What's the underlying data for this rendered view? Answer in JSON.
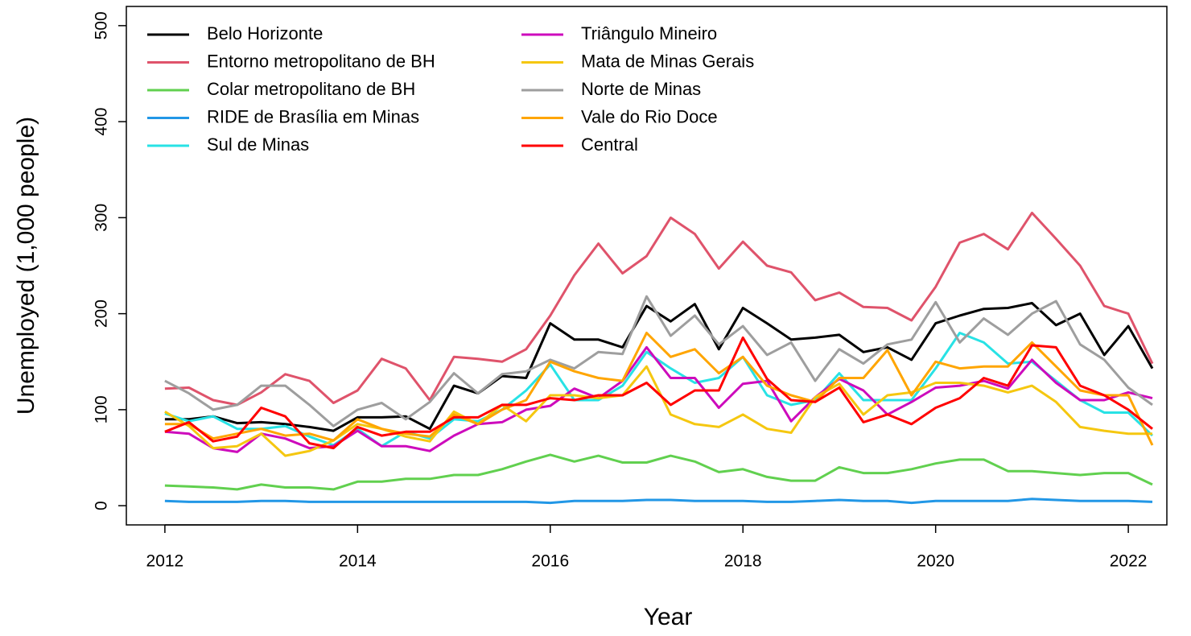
{
  "chart_data": {
    "type": "line",
    "x_label": "Year",
    "y_label": "Unemployed (1,000 people)",
    "x": [
      2012,
      2012.25,
      2012.5,
      2012.75,
      2013,
      2013.25,
      2013.5,
      2013.75,
      2014,
      2014.25,
      2014.5,
      2014.75,
      2015,
      2015.25,
      2015.5,
      2015.75,
      2016,
      2016.25,
      2016.5,
      2016.75,
      2017,
      2017.25,
      2017.5,
      2017.75,
      2018,
      2018.25,
      2018.5,
      2018.75,
      2019,
      2019.25,
      2019.5,
      2019.75,
      2020,
      2020.25,
      2020.5,
      2020.75,
      2021,
      2021.25,
      2021.5,
      2021.75,
      2022,
      2022.25
    ],
    "xlim": [
      2011.6,
      2022.4
    ],
    "xticks": [
      2012,
      2014,
      2016,
      2018,
      2020,
      2022
    ],
    "ylim": [
      -20,
      520
    ],
    "yticks": [
      0,
      100,
      200,
      300,
      400,
      500
    ],
    "legend": "top-left",
    "series": [
      {
        "name": "Belo Horizonte",
        "color": "#000000",
        "values": [
          90,
          90,
          93,
          86,
          87,
          85,
          82,
          78,
          92,
          92,
          93,
          80,
          125,
          117,
          135,
          133,
          190,
          173,
          173,
          165,
          208,
          192,
          210,
          163,
          206,
          190,
          173,
          175,
          178,
          160,
          165,
          152,
          190,
          198,
          205,
          206,
          211,
          188,
          200,
          157,
          187,
          143
        ]
      },
      {
        "name": "Entorno metropolitano de BH",
        "color": "#DF536B",
        "values": [
          122,
          123,
          110,
          105,
          118,
          137,
          130,
          107,
          120,
          153,
          143,
          110,
          155,
          153,
          150,
          163,
          198,
          240,
          273,
          242,
          260,
          300,
          283,
          247,
          275,
          250,
          243,
          214,
          222,
          207,
          206,
          193,
          228,
          274,
          283,
          267,
          305,
          278,
          250,
          208,
          200,
          148
        ]
      },
      {
        "name": "Colar metropolitano de BH",
        "color": "#61D04F",
        "values": [
          21,
          20,
          19,
          17,
          22,
          19,
          19,
          17,
          25,
          25,
          28,
          28,
          32,
          32,
          38,
          46,
          53,
          46,
          52,
          45,
          45,
          52,
          46,
          35,
          38,
          30,
          26,
          26,
          40,
          34,
          34,
          38,
          44,
          48,
          48,
          36,
          36,
          34,
          32,
          34,
          34,
          22
        ]
      },
      {
        "name": "RIDE de Brasília em Minas",
        "color": "#2297E6",
        "values": [
          5,
          4,
          4,
          4,
          5,
          5,
          4,
          4,
          4,
          4,
          4,
          4,
          4,
          4,
          4,
          4,
          3,
          5,
          5,
          5,
          6,
          6,
          5,
          5,
          5,
          4,
          4,
          5,
          6,
          5,
          5,
          3,
          5,
          5,
          5,
          5,
          7,
          6,
          5,
          5,
          5,
          4
        ]
      },
      {
        "name": "Sul de Minas",
        "color": "#28E2E5",
        "values": [
          96,
          88,
          93,
          80,
          80,
          83,
          72,
          63,
          80,
          62,
          77,
          70,
          90,
          88,
          100,
          120,
          147,
          110,
          110,
          125,
          160,
          143,
          128,
          133,
          155,
          115,
          105,
          110,
          138,
          110,
          110,
          110,
          143,
          180,
          170,
          148,
          150,
          130,
          110,
          97,
          97,
          73
        ]
      },
      {
        "name": "Triângulo Mineiro",
        "color": "#CD0BBC",
        "values": [
          77,
          75,
          60,
          56,
          75,
          70,
          60,
          62,
          78,
          62,
          62,
          57,
          73,
          85,
          87,
          100,
          104,
          122,
          112,
          130,
          165,
          133,
          133,
          102,
          127,
          130,
          88,
          113,
          132,
          120,
          95,
          108,
          123,
          125,
          130,
          122,
          152,
          128,
          110,
          110,
          118,
          112
        ]
      },
      {
        "name": "Mata de Minas Gerais",
        "color": "#F5C710",
        "values": [
          98,
          83,
          60,
          62,
          75,
          52,
          57,
          68,
          85,
          80,
          72,
          67,
          98,
          85,
          105,
          88,
          115,
          115,
          112,
          115,
          145,
          95,
          85,
          82,
          95,
          80,
          76,
          113,
          127,
          95,
          115,
          118,
          128,
          128,
          125,
          118,
          125,
          108,
          82,
          78,
          75,
          75
        ]
      },
      {
        "name": "Norte de Minas",
        "color": "#9E9E9E",
        "values": [
          130,
          117,
          100,
          105,
          125,
          125,
          105,
          83,
          100,
          107,
          90,
          108,
          138,
          117,
          137,
          140,
          152,
          143,
          160,
          158,
          218,
          177,
          198,
          168,
          187,
          157,
          170,
          130,
          163,
          148,
          168,
          173,
          212,
          170,
          195,
          178,
          200,
          213,
          168,
          152,
          123,
          105
        ]
      },
      {
        "name": "Vale do Rio Doce",
        "color": "#FFA500",
        "values": [
          85,
          85,
          70,
          75,
          80,
          73,
          75,
          68,
          90,
          80,
          75,
          72,
          95,
          85,
          100,
          110,
          150,
          140,
          133,
          130,
          180,
          155,
          163,
          138,
          155,
          125,
          115,
          108,
          133,
          133,
          162,
          115,
          150,
          143,
          145,
          145,
          170,
          145,
          120,
          115,
          115,
          63
        ]
      },
      {
        "name": "Central",
        "color": "#FF0000",
        "values": [
          77,
          87,
          67,
          72,
          102,
          93,
          65,
          60,
          82,
          73,
          77,
          77,
          92,
          92,
          105,
          105,
          112,
          110,
          115,
          115,
          128,
          105,
          120,
          120,
          175,
          132,
          110,
          108,
          123,
          87,
          95,
          85,
          102,
          112,
          133,
          125,
          167,
          165,
          125,
          115,
          100,
          80
        ]
      }
    ]
  }
}
